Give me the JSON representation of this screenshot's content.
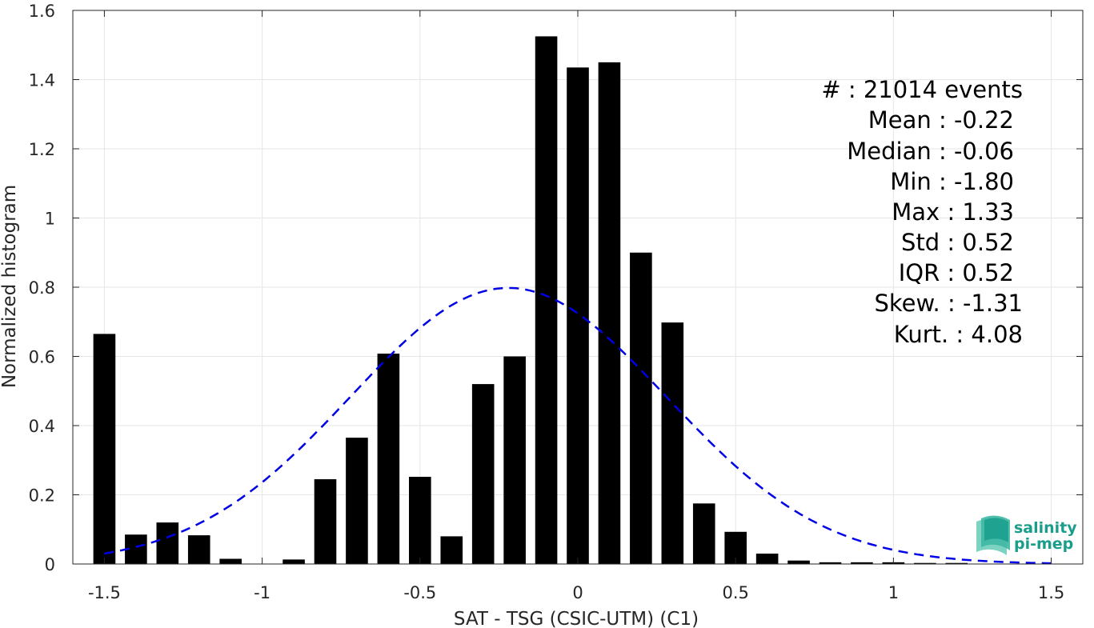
{
  "chart_data": {
    "type": "bar",
    "xlabel": "SAT - TSG (CSIC-UTM) (C1)",
    "ylabel": "Normalized histogram",
    "xlim": [
      -1.6,
      1.6
    ],
    "ylim": [
      0,
      1.6
    ],
    "grid": true,
    "x_ticks": [
      "-1.5",
      "-1",
      "-0.5",
      "0",
      "0.5",
      "1",
      "1.5"
    ],
    "x_tick_values": [
      -1.5,
      -1,
      -0.5,
      0,
      0.5,
      1,
      1.5
    ],
    "y_ticks": [
      "0",
      "0.2",
      "0.4",
      "0.6",
      "0.8",
      "1",
      "1.2",
      "1.4",
      "1.6"
    ],
    "y_tick_values": [
      0,
      0.2,
      0.4,
      0.6,
      0.8,
      1,
      1.2,
      1.4,
      1.6
    ],
    "bar_width": 0.07,
    "bars": {
      "x": [
        -1.5,
        -1.4,
        -1.3,
        -1.2,
        -1.1,
        -1.0,
        -0.9,
        -0.8,
        -0.7,
        -0.6,
        -0.5,
        -0.4,
        -0.3,
        -0.2,
        -0.1,
        0.0,
        0.1,
        0.2,
        0.3,
        0.4,
        0.5,
        0.6,
        0.7,
        0.8,
        0.9,
        1.0,
        1.1,
        1.2,
        1.3,
        1.4,
        1.5
      ],
      "values": [
        0.665,
        0.085,
        0.12,
        0.083,
        0.015,
        0.0,
        0.013,
        0.245,
        0.365,
        0.608,
        0.252,
        0.08,
        0.52,
        0.6,
        1.525,
        1.435,
        1.45,
        0.9,
        0.698,
        0.175,
        0.093,
        0.03,
        0.01,
        0.005,
        0.005,
        0.005,
        0.003,
        0.003,
        0.0,
        0.0,
        0.0
      ],
      "color": "#000000"
    },
    "fit": {
      "type": "normal-pdf",
      "mean": -0.22,
      "std": 0.5,
      "x_range": [
        -1.5,
        1.5
      ],
      "color": "#0000e6",
      "style": "dashed"
    },
    "stats": {
      "count": "#  : 21014 events",
      "mean": "Mean : -0.22",
      "median": "Median : -0.06",
      "min": "Min : -1.80",
      "max": "Max : 1.33",
      "std": "Std : 0.52",
      "iqr": "IQR : 0.52",
      "skew": "Skew. : -1.31",
      "kurt": "Kurt. : 4.08"
    },
    "logo": {
      "line1": "salinity",
      "line2": "pi-mep"
    }
  }
}
